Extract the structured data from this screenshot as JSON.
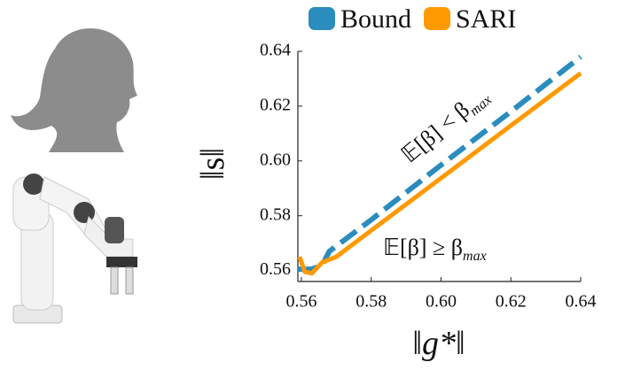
{
  "chart_data": {
    "type": "line",
    "xlabel": "‖g*‖",
    "ylabel": "‖s‖",
    "xlim": [
      0.559,
      0.64
    ],
    "ylim": [
      0.556,
      0.64
    ],
    "xticks": [
      0.56,
      0.58,
      {
        "value": 0.6,
        "label": "0.60"
      },
      0.62,
      0.64
    ],
    "yticks": [
      0.56,
      0.58,
      {
        "value": 0.6,
        "label": "0.60"
      },
      0.62,
      0.64
    ],
    "legend": "top",
    "series": [
      {
        "name": "Bound",
        "color": "#2b8cbe",
        "dashed": true,
        "x": [
          0.559,
          0.563,
          0.566,
          0.568,
          0.58,
          0.6,
          0.62,
          0.64
        ],
        "values": [
          0.5605,
          0.5605,
          0.562,
          0.567,
          0.5785,
          0.5985,
          0.618,
          0.638
        ]
      },
      {
        "name": "SARI",
        "color": "#ff9900",
        "dashed": false,
        "x": [
          0.5595,
          0.561,
          0.563,
          0.566,
          0.57,
          0.58,
          0.6,
          0.62,
          0.64
        ],
        "values": [
          0.565,
          0.5595,
          0.559,
          0.563,
          0.565,
          0.5746,
          0.5937,
          0.6129,
          0.632
        ]
      }
    ],
    "annotations": [
      {
        "text": "𝔼[β] < β",
        "subscript": "max"
      },
      {
        "text": "𝔼[β] ≥ β",
        "subscript": "max"
      }
    ]
  }
}
